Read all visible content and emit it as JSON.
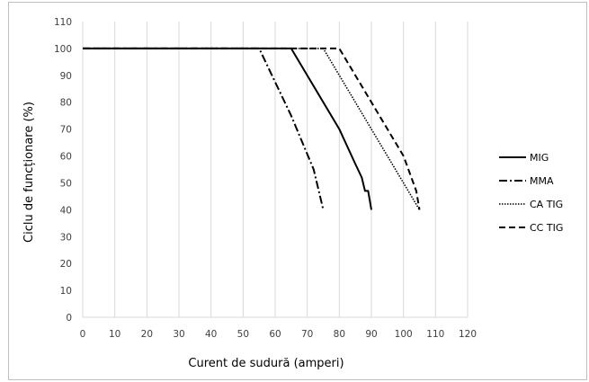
{
  "chart_data": {
    "type": "line",
    "title": "",
    "xlabel": "Curent de sudură (amperi)",
    "ylabel": "Ciclu de funcționare (%)",
    "xlim": [
      0,
      120
    ],
    "ylim": [
      0,
      110
    ],
    "xticks": [
      0,
      10,
      20,
      30,
      40,
      50,
      60,
      70,
      80,
      90,
      100,
      110,
      120
    ],
    "yticks": [
      0,
      10,
      20,
      30,
      40,
      50,
      60,
      70,
      80,
      90,
      100,
      110
    ],
    "grid": "vertical",
    "legend_position": "right",
    "series": [
      {
        "name": "MIG",
        "style": "solid",
        "color": "#000000",
        "x": [
          0,
          65,
          80,
          85,
          87,
          88,
          89,
          90
        ],
        "y": [
          100,
          100,
          70,
          57,
          52,
          47,
          47,
          40
        ]
      },
      {
        "name": "MMA",
        "style": "dashdot",
        "color": "#000000",
        "x": [
          0,
          55,
          65,
          72,
          75
        ],
        "y": [
          100,
          100,
          75,
          55,
          40
        ]
      },
      {
        "name": "CA TIG",
        "style": "dotted",
        "color": "#000000",
        "x": [
          0,
          75,
          105
        ],
        "y": [
          100,
          100,
          40
        ]
      },
      {
        "name": "CC TIG",
        "style": "dashed",
        "color": "#000000",
        "x": [
          0,
          80,
          100,
          104,
          105
        ],
        "y": [
          100,
          100,
          60,
          47,
          40
        ]
      }
    ]
  },
  "colors": {
    "grid": "#d9d9d9",
    "frame": "#bfbfbf",
    "line": "#000000"
  }
}
